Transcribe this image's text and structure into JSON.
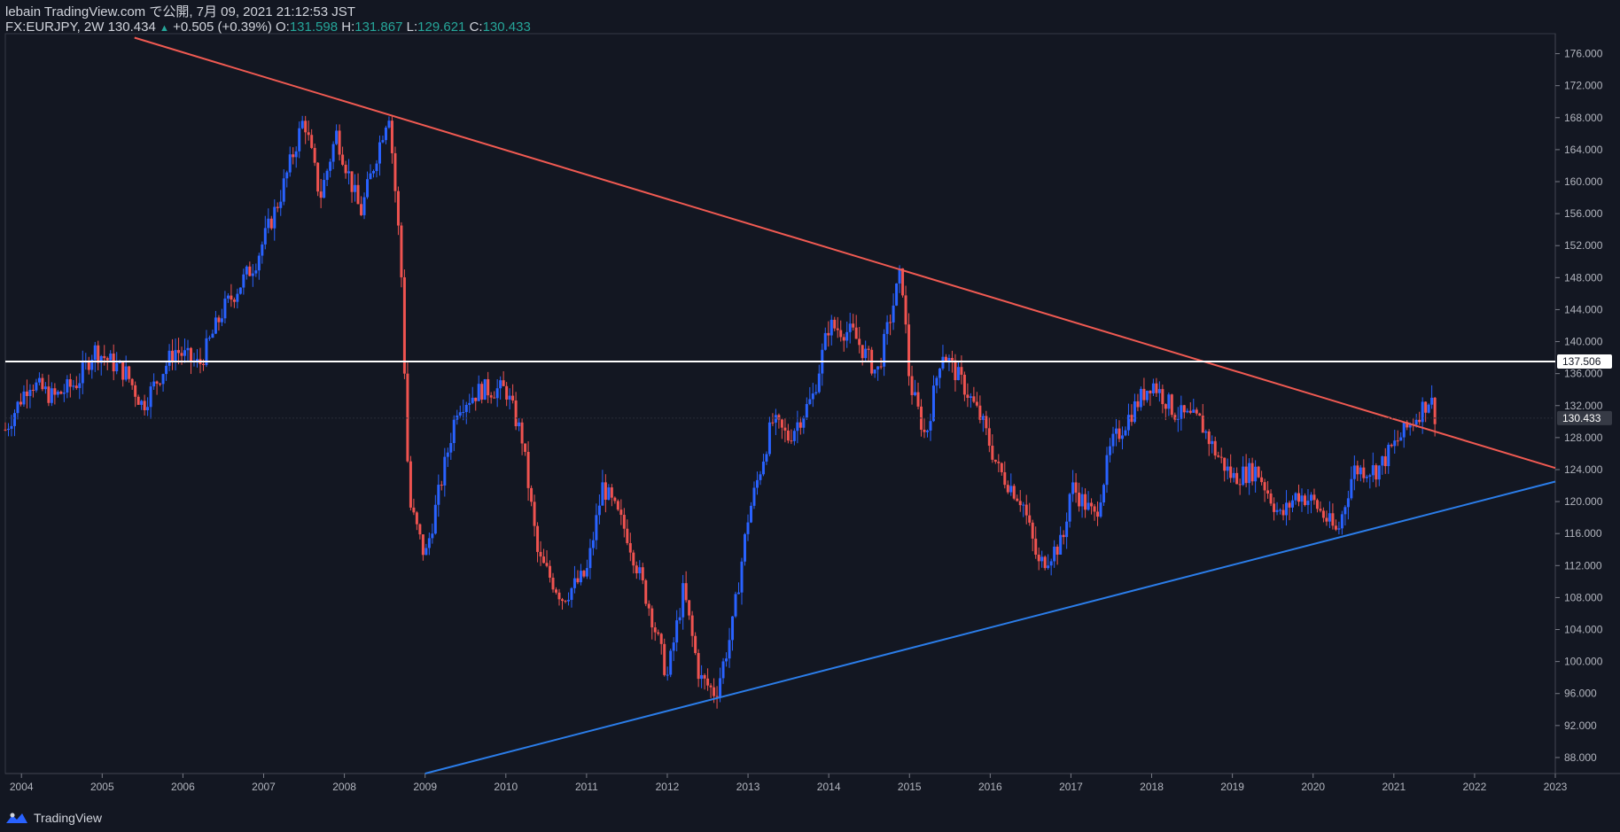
{
  "header": {
    "line1": "lebain TradingView.com で公開, 7月 09, 2021 21:12:53 JST",
    "symbol": "FX:EURJPY, 2W",
    "last": "130.434",
    "change": "+0.505 (+0.39%)",
    "o_label": "O:",
    "o_value": "131.598",
    "h_label": "H:",
    "h_value": "131.867",
    "l_label": "L:",
    "l_value": "129.621",
    "c_label": "C:",
    "c_value": "130.433"
  },
  "footer": {
    "brand": "TradingView"
  },
  "colors": {
    "background": "#131722",
    "up": "#2962ff",
    "down": "#ef5350",
    "resistance": "#f05a52",
    "support": "#2b7de9",
    "horizontal": "#ffffff"
  },
  "chart_data": {
    "type": "candlestick",
    "symbol": "FX:EURJPY",
    "interval": "2W",
    "x_tick_labels": [
      "2004",
      "2005",
      "2006",
      "2007",
      "2008",
      "2009",
      "2010",
      "2011",
      "2012",
      "2013",
      "2014",
      "2015",
      "2016",
      "2017",
      "2018",
      "2019",
      "2020",
      "2021",
      "2022",
      "2023"
    ],
    "y_tick_labels": [
      "88.000",
      "92.000",
      "96.000",
      "100.000",
      "104.000",
      "108.000",
      "112.000",
      "116.000",
      "120.000",
      "124.000",
      "128.000",
      "132.000",
      "136.000",
      "140.000",
      "144.000",
      "148.000",
      "152.000",
      "156.000",
      "160.000",
      "164.000",
      "168.000",
      "172.000",
      "176.000"
    ],
    "xlim": [
      2003.8,
      2023.0
    ],
    "ylim": [
      86.0,
      178.5
    ],
    "price_path": [
      [
        2003.8,
        129
      ],
      [
        2004.1,
        135
      ],
      [
        2004.4,
        133
      ],
      [
        2004.7,
        135
      ],
      [
        2004.9,
        139
      ],
      [
        2005.3,
        136
      ],
      [
        2005.5,
        132
      ],
      [
        2005.9,
        139
      ],
      [
        2006.2,
        137
      ],
      [
        2006.5,
        144
      ],
      [
        2006.9,
        150
      ],
      [
        2007.2,
        158
      ],
      [
        2007.5,
        168
      ],
      [
        2007.7,
        158
      ],
      [
        2007.9,
        166
      ],
      [
        2008.2,
        156
      ],
      [
        2008.55,
        169
      ],
      [
        2008.7,
        150
      ],
      [
        2008.8,
        120
      ],
      [
        2009.0,
        113
      ],
      [
        2009.4,
        132
      ],
      [
        2009.7,
        134
      ],
      [
        2010.0,
        134
      ],
      [
        2010.2,
        128
      ],
      [
        2010.4,
        113
      ],
      [
        2010.7,
        108
      ],
      [
        2011.0,
        111
      ],
      [
        2011.2,
        122
      ],
      [
        2011.5,
        116
      ],
      [
        2011.8,
        106
      ],
      [
        2012.0,
        98
      ],
      [
        2012.2,
        109
      ],
      [
        2012.4,
        98
      ],
      [
        2012.6,
        96
      ],
      [
        2012.8,
        104
      ],
      [
        2013.0,
        118
      ],
      [
        2013.3,
        130
      ],
      [
        2013.5,
        128
      ],
      [
        2013.8,
        133
      ],
      [
        2014.0,
        142
      ],
      [
        2014.3,
        141
      ],
      [
        2014.6,
        136
      ],
      [
        2014.9,
        149
      ],
      [
        2015.0,
        135
      ],
      [
        2015.2,
        128
      ],
      [
        2015.4,
        139
      ],
      [
        2015.7,
        134
      ],
      [
        2015.9,
        130
      ],
      [
        2016.1,
        124
      ],
      [
        2016.4,
        120
      ],
      [
        2016.6,
        112
      ],
      [
        2016.9,
        115
      ],
      [
        2017.0,
        122
      ],
      [
        2017.3,
        118
      ],
      [
        2017.5,
        127
      ],
      [
        2017.8,
        132
      ],
      [
        2018.0,
        135
      ],
      [
        2018.3,
        131
      ],
      [
        2018.6,
        130
      ],
      [
        2018.8,
        126
      ],
      [
        2019.0,
        123
      ],
      [
        2019.3,
        124
      ],
      [
        2019.6,
        118
      ],
      [
        2019.8,
        121
      ],
      [
        2020.0,
        120
      ],
      [
        2020.3,
        116
      ],
      [
        2020.5,
        124
      ],
      [
        2020.8,
        124
      ],
      [
        2021.0,
        127
      ],
      [
        2021.3,
        131
      ],
      [
        2021.45,
        133
      ],
      [
        2021.52,
        130.433
      ]
    ],
    "resistance_line": {
      "from": [
        2005.4,
        178.0
      ],
      "to": [
        2023.0,
        124.2
      ]
    },
    "support_line": {
      "from": [
        2009.0,
        86.0
      ],
      "to": [
        2023.0,
        122.5
      ]
    },
    "horizontal_line": {
      "value": 137.506,
      "label": "137.506"
    },
    "last_price": {
      "value": 130.433,
      "label": "130.433"
    }
  }
}
